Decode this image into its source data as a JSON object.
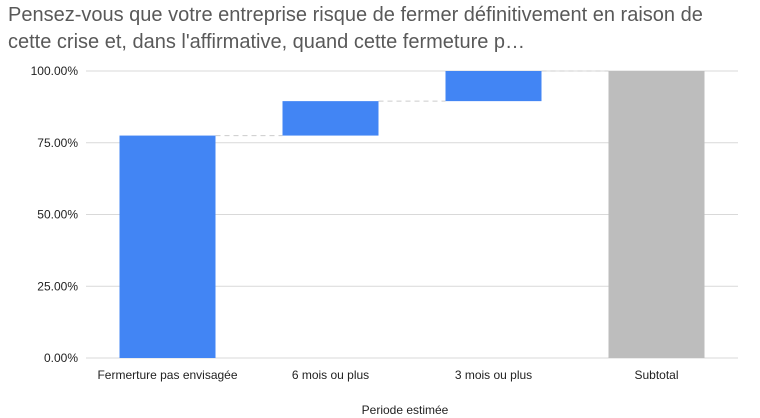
{
  "chart_data": {
    "type": "waterfall",
    "title": "Pensez-vous que votre entreprise risque de fermer définitivement en raison de cette crise et, dans l'affirmative, quand cette fermeture p…",
    "xlabel": "Periode estimée",
    "ylabel": "",
    "categories": [
      "Fermerture pas envisagée",
      "6 mois ou plus",
      "3 mois ou plus",
      "Subtotal"
    ],
    "values": [
      77.5,
      12.0,
      10.5,
      100.0
    ],
    "is_total": [
      false,
      false,
      false,
      true
    ],
    "ylim": [
      0,
      100
    ],
    "yticks": [
      0,
      25,
      50,
      75,
      100
    ],
    "ytick_labels": [
      "0.00%",
      "25.00%",
      "50.00%",
      "75.00%",
      "100.00%"
    ],
    "grid": true,
    "legend": "none",
    "colors": {
      "bar": "#4285f4",
      "total": "#bdbdbd",
      "grid": "#d9d9d9",
      "connector": "#cccccc"
    }
  }
}
